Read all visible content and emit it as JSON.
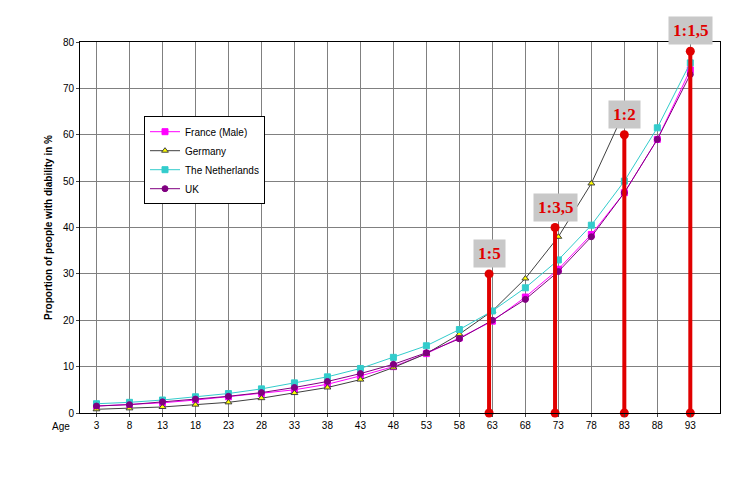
{
  "chart_data": {
    "type": "line",
    "x_label": "Age",
    "y_label": "Proportion of people with diability in %",
    "x": [
      3,
      8,
      13,
      18,
      23,
      28,
      33,
      38,
      43,
      48,
      53,
      58,
      63,
      68,
      73,
      78,
      83,
      88,
      93
    ],
    "series": [
      {
        "name": "France (Male)",
        "color": "#ff00ff",
        "marker": "square",
        "values": [
          1.5,
          1.8,
          2.2,
          2.8,
          3.5,
          4.2,
          5,
          6.2,
          8,
          10,
          12.8,
          16.2,
          19.8,
          25,
          31,
          38.5,
          47.5,
          59,
          74
        ]
      },
      {
        "name": "Germany",
        "color": "#404040",
        "marker": "triangle-up",
        "values": [
          0.8,
          1,
          1.3,
          1.8,
          2.3,
          3.2,
          4.3,
          5.5,
          7.2,
          9.8,
          12.8,
          17,
          22,
          29,
          38,
          49.5,
          65,
          null,
          null
        ]
      },
      {
        "name": "The Netherlands",
        "color": "#33cccc",
        "marker": "square",
        "values": [
          2,
          2.3,
          2.8,
          3.5,
          4.2,
          5.2,
          6.5,
          7.8,
          9.6,
          12,
          14.5,
          18,
          22,
          27,
          33,
          40.5,
          50,
          61.5,
          75.5
        ]
      },
      {
        "name": "UK",
        "color": "#800080",
        "marker": "circle",
        "values": [
          1.5,
          1.8,
          2.4,
          3,
          3.6,
          4.4,
          5.5,
          6.8,
          8.5,
          10.5,
          13,
          16,
          20,
          24.5,
          30.5,
          38,
          47.5,
          59,
          73
        ]
      }
    ],
    "xlim": [
      0.5,
      97.5
    ],
    "xticks": [
      3,
      8,
      13,
      18,
      23,
      28,
      33,
      38,
      43,
      48,
      53,
      58,
      63,
      68,
      73,
      78,
      83,
      88,
      93
    ],
    "ylim": [
      0,
      80
    ],
    "yticks": [
      0,
      10,
      20,
      30,
      40,
      50,
      60,
      70,
      80
    ],
    "grid": true,
    "legend": "upper left",
    "annotations": [
      {
        "text": "1:5",
        "x": 62.5,
        "y": 30,
        "color": "#e00000"
      },
      {
        "text": "1:3,5",
        "x": 72.5,
        "y": 40,
        "color": "#e00000"
      },
      {
        "text": "1:2",
        "x": 83,
        "y": 60,
        "color": "#e00000"
      },
      {
        "text": "1:1,5",
        "x": 93,
        "y": 78,
        "color": "#e00000"
      }
    ]
  }
}
